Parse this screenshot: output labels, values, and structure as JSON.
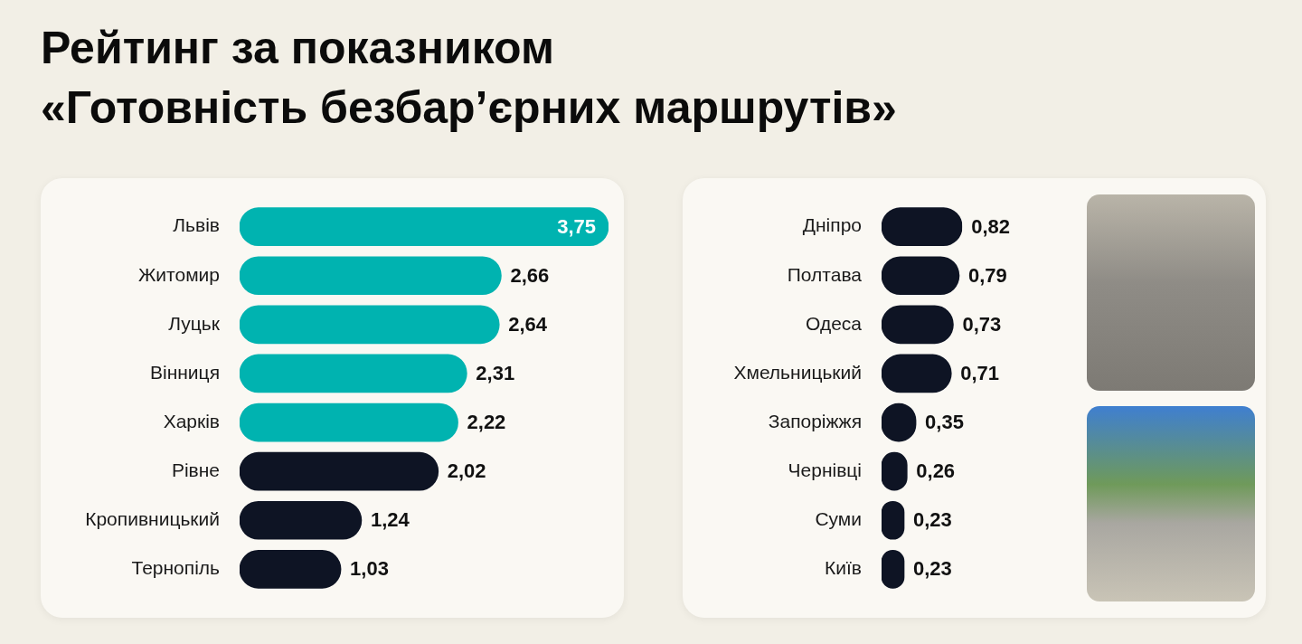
{
  "title": "Рейтинг за показником\n«Готовність безбар’єрних маршрутів»",
  "chart_data": [
    {
      "type": "bar",
      "orientation": "horizontal",
      "categories": [
        "Львів",
        "Житомир",
        "Луцьк",
        "Вінниця",
        "Харків",
        "Рівне",
        "Кропивницький",
        "Тернопіль"
      ],
      "values": [
        3.75,
        2.66,
        2.64,
        2.31,
        2.22,
        2.02,
        1.24,
        1.03
      ],
      "value_labels": [
        "3,75",
        "2,66",
        "2,64",
        "2,31",
        "2,22",
        "2,02",
        "1,24",
        "1,03"
      ],
      "colors": [
        "#00b3b0",
        "#00b3b0",
        "#00b3b0",
        "#00b3b0",
        "#00b3b0",
        "#0e1424",
        "#0e1424",
        "#0e1424"
      ],
      "data_labels": true,
      "grid": false,
      "tick_labels": "y"
    },
    {
      "type": "bar",
      "orientation": "horizontal",
      "categories": [
        "Дніпро",
        "Полтава",
        "Одеса",
        "Хмельницький",
        "Запоріжжя",
        "Чернівці",
        "Суми",
        "Київ"
      ],
      "values": [
        0.82,
        0.79,
        0.73,
        0.71,
        0.35,
        0.26,
        0.23,
        0.23
      ],
      "value_labels": [
        "0,82",
        "0,79",
        "0,73",
        "0,71",
        "0,35",
        "0,26",
        "0,23",
        "0,23"
      ],
      "color": "#0e1424",
      "data_labels": true,
      "grid": false,
      "tick_labels": "y"
    }
  ]
}
